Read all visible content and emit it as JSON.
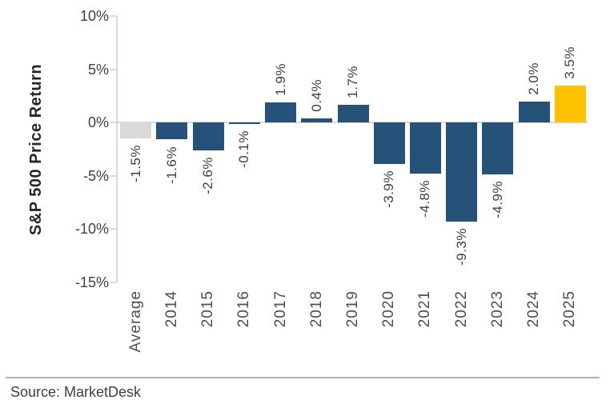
{
  "figure": {
    "source_label": "Source: MarketDesk",
    "background": "#FFFFFF"
  },
  "chart_data": {
    "type": "bar",
    "title": "",
    "xlabel": "",
    "ylabel": "S&P 500 Price Return",
    "categories": [
      "Average",
      "2014",
      "2015",
      "2016",
      "2017",
      "2018",
      "2019",
      "2020",
      "2021",
      "2022",
      "2023",
      "2024",
      "2025"
    ],
    "values": [
      -1.5,
      -1.6,
      -2.6,
      -0.1,
      1.9,
      0.4,
      1.7,
      -3.9,
      -4.8,
      -9.3,
      -4.9,
      2.0,
      3.5
    ],
    "value_labels": [
      "-1.5%",
      "-1.6%",
      "-2.6%",
      "-0.1%",
      "1.9%",
      "0.4%",
      "1.7%",
      "-3.9%",
      "-4.8%",
      "-9.3%",
      "-4.9%",
      "2.0%",
      "3.5%"
    ],
    "bar_colors": [
      "#D9D9D9",
      "#26527A",
      "#26527A",
      "#26527A",
      "#26527A",
      "#26527A",
      "#26527A",
      "#26527A",
      "#26527A",
      "#26527A",
      "#26527A",
      "#26527A",
      "#FFC200"
    ],
    "ylim": [
      -15,
      10
    ],
    "yticks": [
      10,
      5,
      0,
      -5,
      -10,
      -15
    ],
    "ytick_labels": [
      "10%",
      "5%",
      "0%",
      "-5%",
      "-10%",
      "-15%"
    ],
    "grid": false,
    "legend": "none",
    "colors": {
      "axis": "#D9D9D9",
      "tick_text": "#404040",
      "title_text": "#262626",
      "source_rule": "#B3B3B3"
    }
  }
}
